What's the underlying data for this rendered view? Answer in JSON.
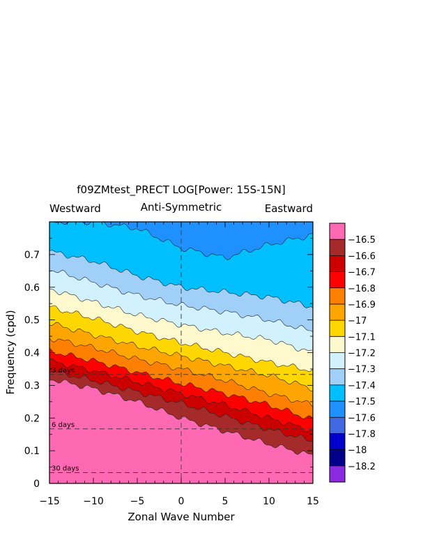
{
  "chart_data": {
    "type": "contour",
    "title": "f09ZMtest_PRECT LOG[Power: 15S-15N]",
    "subtitle": "Anti-Symmetric",
    "left_label": "Westward",
    "right_label": "Eastward",
    "xlabel": "Zonal Wave Number",
    "ylabel": "Frequency (cpd)",
    "xlim": [
      -15,
      15
    ],
    "ylim": [
      0,
      0.8
    ],
    "x_ticks": [
      -15,
      -10,
      -5,
      0,
      5,
      10,
      15
    ],
    "y_ticks": [
      0,
      0.1,
      0.2,
      0.3,
      0.4,
      0.5,
      0.6,
      0.7
    ],
    "levels": [
      "-16.5",
      "-16.6",
      "-16.7",
      "-16.8",
      "-16.9",
      "-17",
      "-17.1",
      "-17.2",
      "-17.3",
      "-17.4",
      "-17.5",
      "-17.6",
      "-17.8",
      "-18",
      "-18.2"
    ],
    "colors": [
      "#ff69b4",
      "#a52a2a",
      "#cd0000",
      "#ff0000",
      "#ff7f00",
      "#ffa500",
      "#ffd700",
      "#fffacd",
      "#d1f1fe",
      "#a0cff8",
      "#00bfff",
      "#1e90ff",
      "#4169e1",
      "#0000cd",
      "#00008b",
      "#8a2be2"
    ],
    "contour_bounds": [
      {
        "x": [
          -15,
          -10,
          -5,
          0,
          5,
          10,
          15
        ],
        "y": [
          0.32,
          0.29,
          0.25,
          0.2,
          0.16,
          0.12,
          0.085
        ]
      },
      {
        "x": [
          -15,
          -10,
          -5,
          0,
          5,
          10,
          15
        ],
        "y": [
          0.345,
          0.315,
          0.28,
          0.245,
          0.205,
          0.165,
          0.13
        ]
      },
      {
        "x": [
          -15,
          -10,
          -5,
          0,
          5,
          10,
          15
        ],
        "y": [
          0.375,
          0.345,
          0.31,
          0.275,
          0.24,
          0.2,
          0.16
        ]
      },
      {
        "x": [
          -15,
          -10,
          -5,
          0,
          5,
          10,
          15
        ],
        "y": [
          0.405,
          0.375,
          0.34,
          0.305,
          0.275,
          0.24,
          0.195
        ]
      },
      {
        "x": [
          -15,
          -10,
          -5,
          0,
          5,
          10,
          15
        ],
        "y": [
          0.445,
          0.415,
          0.38,
          0.35,
          0.315,
          0.275,
          0.24
        ]
      },
      {
        "x": [
          -15,
          -10,
          -5,
          0,
          5,
          10,
          15
        ],
        "y": [
          0.49,
          0.455,
          0.42,
          0.39,
          0.36,
          0.33,
          0.29
        ]
      },
      {
        "x": [
          -15,
          -10,
          -5,
          0,
          5,
          10,
          15
        ],
        "y": [
          0.54,
          0.505,
          0.465,
          0.43,
          0.4,
          0.37,
          0.345
        ]
      },
      {
        "x": [
          -15,
          -10,
          -5,
          0,
          5,
          10,
          15
        ],
        "y": [
          0.595,
          0.555,
          0.515,
          0.485,
          0.46,
          0.44,
          0.4
        ]
      },
      {
        "x": [
          -15,
          -10,
          -5,
          0,
          5,
          10,
          15
        ],
        "y": [
          0.655,
          0.615,
          0.575,
          0.545,
          0.525,
          0.5,
          0.465
        ]
      },
      {
        "x": [
          -15,
          -10,
          -5,
          0,
          5,
          10,
          15
        ],
        "y": [
          0.71,
          0.68,
          0.635,
          0.6,
          0.585,
          0.57,
          0.54
        ]
      },
      {
        "x": [
          -15,
          -10,
          -5,
          0,
          5,
          10,
          15
        ],
        "y": [
          0.8,
          0.8,
          0.78,
          0.72,
          0.69,
          0.73,
          0.76
        ]
      }
    ],
    "reference_lines": [
      {
        "label": "3 days",
        "frequency": 0.3333
      },
      {
        "label": "6 days",
        "frequency": 0.1667
      },
      {
        "label": "30 days",
        "frequency": 0.0333
      }
    ]
  }
}
